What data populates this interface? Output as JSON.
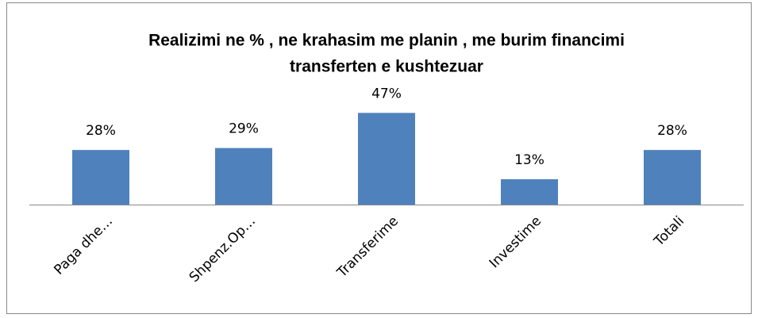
{
  "chart_data": {
    "type": "bar",
    "title": [
      "Realizimi ne % , ne krahasim me planin , me burim financimi",
      "transferten e kushtezuar"
    ],
    "categories": [
      "Paga dhe…",
      "Shpenz.Op…",
      "Transferime",
      "Investime",
      "Totali"
    ],
    "values": [
      28,
      29,
      47,
      13,
      28
    ],
    "value_labels": [
      "28%",
      "29%",
      "47%",
      "13%",
      "28%"
    ],
    "color": "#4f81bd"
  }
}
